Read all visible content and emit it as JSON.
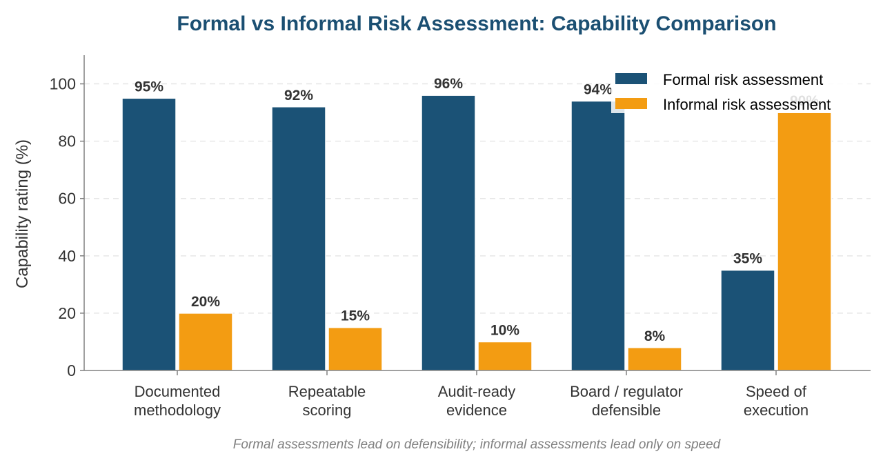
{
  "chart_data": {
    "type": "bar",
    "title": "Formal vs Informal Risk Assessment: Capability Comparison",
    "ylabel": "Capability rating (%)",
    "xlabel": "",
    "ylim": [
      0,
      110
    ],
    "yticks": [
      0,
      20,
      40,
      60,
      80,
      100
    ],
    "grid": true,
    "legend_position": "top-right",
    "categories": [
      [
        "Documented",
        "methodology"
      ],
      [
        "Repeatable",
        "scoring"
      ],
      [
        "Audit-ready",
        "evidence"
      ],
      [
        "Board / regulator",
        "defensible"
      ],
      [
        "Speed of",
        "execution"
      ]
    ],
    "series": [
      {
        "name": "Formal risk assessment",
        "color": "#1b5276",
        "values": [
          95,
          92,
          96,
          94,
          35
        ],
        "labels": [
          "95%",
          "92%",
          "96%",
          "94%",
          "35%"
        ]
      },
      {
        "name": "Informal risk assessment",
        "color": "#f39c12",
        "values": [
          20,
          15,
          10,
          8,
          90
        ],
        "labels": [
          "20%",
          "15%",
          "10%",
          "8%",
          "90%"
        ]
      }
    ],
    "caption": "Formal assessments lead on defensibility; informal assessments lead only on speed"
  }
}
